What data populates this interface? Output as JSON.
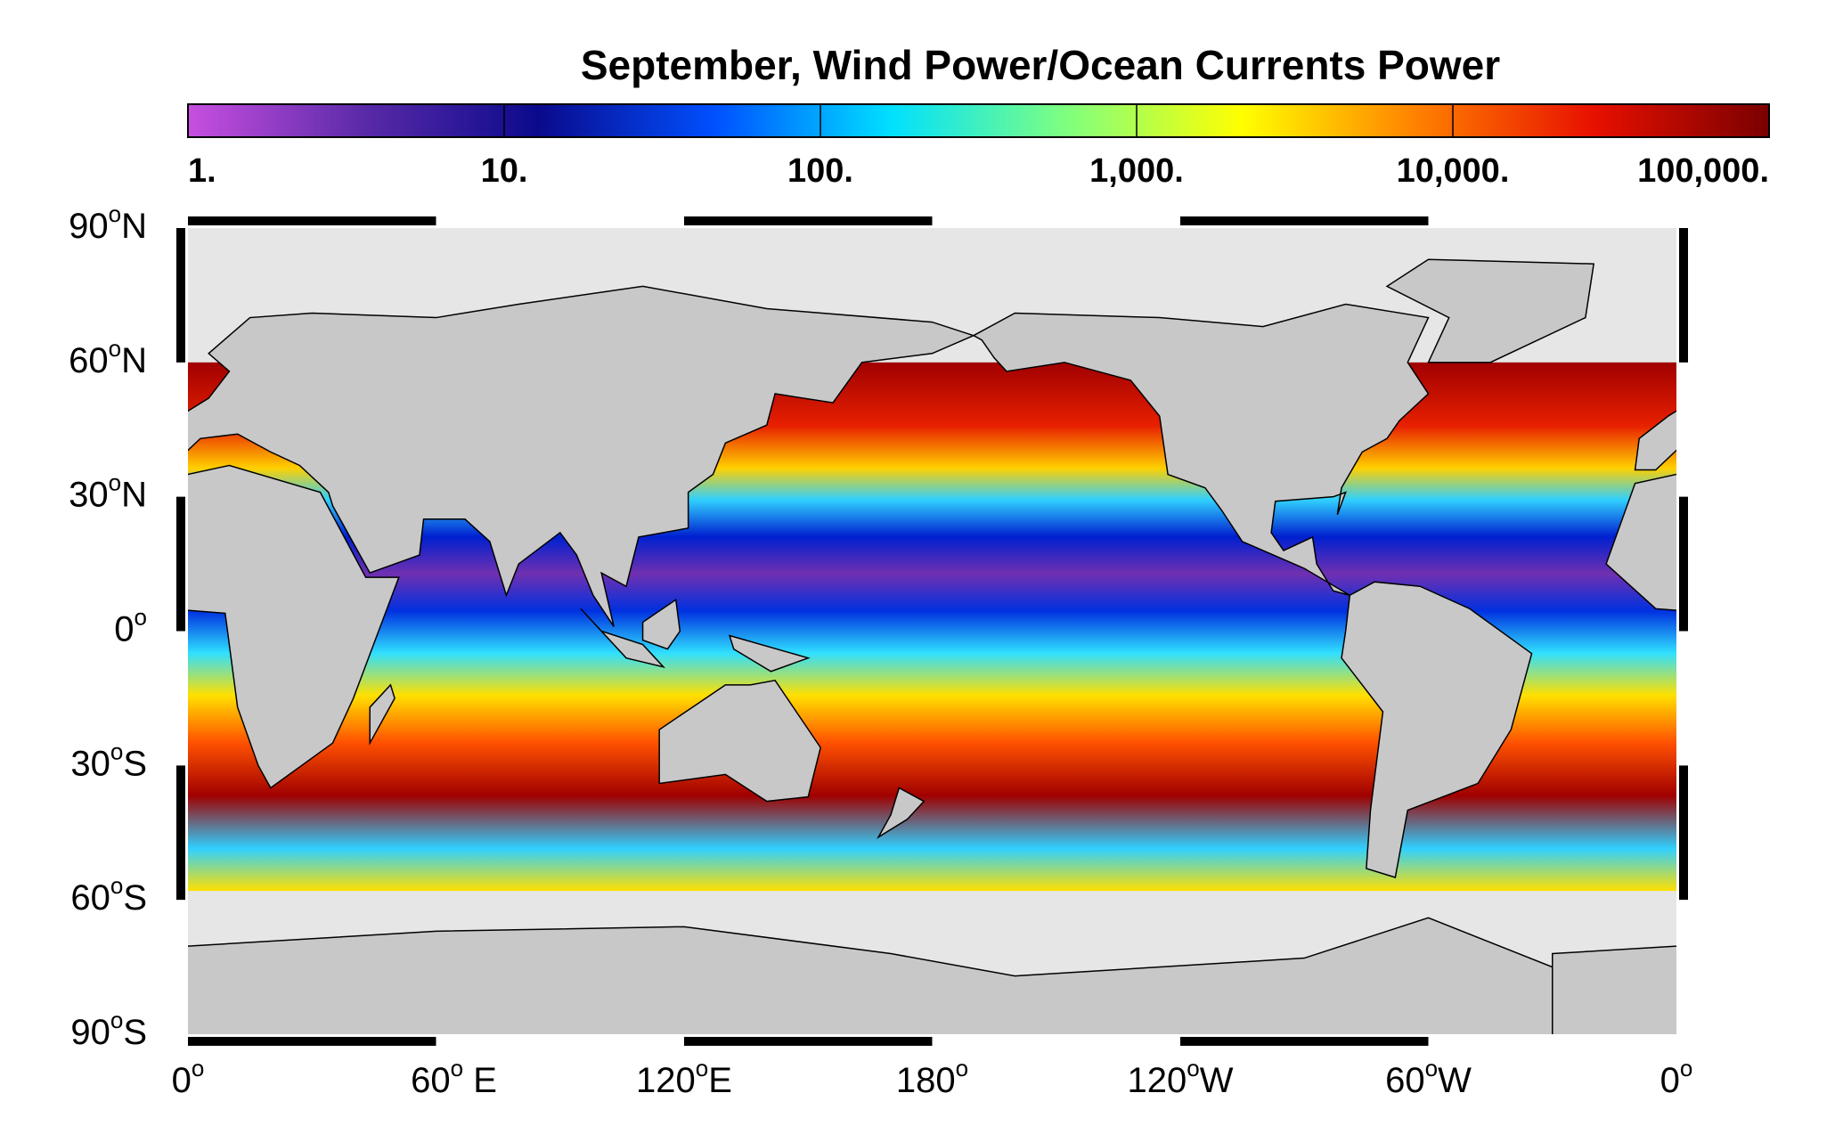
{
  "title": "September, Wind Power/Ocean Currents Power",
  "colorbar": {
    "scale": "log",
    "lim": [
      1,
      100000
    ],
    "ticks": [
      {
        "value": 1,
        "label": "1."
      },
      {
        "value": 10,
        "label": "10."
      },
      {
        "value": 100,
        "label": "100."
      },
      {
        "value": 1000,
        "label": "1,000."
      },
      {
        "value": 10000,
        "label": "10,000."
      },
      {
        "value": 100000,
        "label": "100,000."
      }
    ],
    "colors": [
      "#c84fe0",
      "#5a2aa8",
      "#0a0a8c",
      "#0050ff",
      "#00e0ff",
      "#7fff7f",
      "#ffff00",
      "#ff8000",
      "#e81000",
      "#7a0000"
    ]
  },
  "lat_labels": [
    {
      "num": "90",
      "sup": "o",
      "dir": "N"
    },
    {
      "num": "60",
      "sup": "o",
      "dir": "N"
    },
    {
      "num": "30",
      "sup": "o",
      "dir": "N"
    },
    {
      "num": "0",
      "sup": "o",
      "dir": ""
    },
    {
      "num": "30",
      "sup": "o",
      "dir": "S"
    },
    {
      "num": "60",
      "sup": "o",
      "dir": "S"
    },
    {
      "num": "90",
      "sup": "o",
      "dir": "S"
    }
  ],
  "lon_labels": [
    {
      "num": "0",
      "sup": "o",
      "dir": ""
    },
    {
      "num": "60",
      "sup": "o",
      "dir": " E"
    },
    {
      "num": "120",
      "sup": "o",
      "dir": "E"
    },
    {
      "num": "180",
      "sup": "o",
      "dir": ""
    },
    {
      "num": "120",
      "sup": "o",
      "dir": "W"
    },
    {
      "num": "60",
      "sup": "o",
      "dir": "W"
    },
    {
      "num": "0",
      "sup": "o",
      "dir": ""
    }
  ]
}
